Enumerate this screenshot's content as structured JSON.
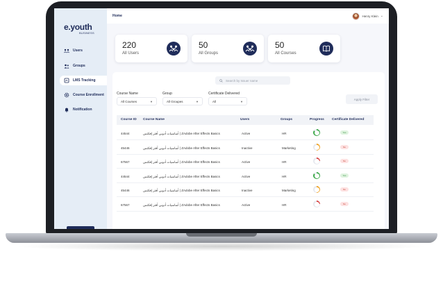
{
  "colors": {
    "brand": "#1f2c5a",
    "sidebar_bg": "#e5edf6",
    "green": "#3ca84a",
    "orange": "#f0a323",
    "red": "#d94343"
  },
  "logo": {
    "text": "e.youth",
    "sub": "BUSINESS"
  },
  "sidebar": {
    "items": [
      {
        "label": "Users",
        "icon": "users-icon"
      },
      {
        "label": "Groups",
        "icon": "groups-icon"
      },
      {
        "label": "LMS Tracking",
        "icon": "tracking-icon",
        "active": true
      },
      {
        "label": "Course Enrollment",
        "icon": "gear-icon"
      },
      {
        "label": "Notification",
        "icon": "bell-icon"
      }
    ]
  },
  "topbar": {
    "breadcrumb": "Home",
    "user_name": "Henry Klein"
  },
  "stats": [
    {
      "value": "220",
      "label": "All Users",
      "icon": "users-network-icon"
    },
    {
      "value": "50",
      "label": "All Groups",
      "icon": "groups-network-icon"
    },
    {
      "value": "50",
      "label": "All Courses",
      "icon": "book-icon"
    }
  ],
  "search": {
    "placeholder": "Search by Issuer name"
  },
  "filters": {
    "course_name_label": "Course Name",
    "course_name_value": "All Courses",
    "group_label": "Group",
    "group_value": "All Groupes",
    "certificate_label": "Certificate Delivered",
    "certificate_value": "All",
    "apply_label": "Apply Filter"
  },
  "table": {
    "headers": [
      "Course ID",
      "Course Name",
      "Users",
      "Groups",
      "Progress",
      "Certificate Delivered"
    ],
    "rows": [
      {
        "id": "44544",
        "name": "أساسيات أدوبي أفتر إفكتس | ZAdobe After Effects Basics",
        "users": "Active",
        "groups": "HR",
        "progress": 0.85,
        "progress_color": "green",
        "cert": "Yes"
      },
      {
        "id": "45446",
        "name": "أساسيات أدوبي أفتر إفكتس | ZAdobe After Effects Basics",
        "users": "Inactive",
        "groups": "Marketing",
        "progress": 0.5,
        "progress_color": "orange",
        "cert": "No"
      },
      {
        "id": "67567",
        "name": "أساسيات أدوبي أفتر إفكتس | ZAdobe After Effects Basics",
        "users": "Active",
        "groups": "HR",
        "progress": 0.25,
        "progress_color": "red",
        "cert": "No"
      },
      {
        "id": "44544",
        "name": "أساسيات أدوبي أفتر إفكتس | ZAdobe After Effects Basics",
        "users": "Active",
        "groups": "HR",
        "progress": 0.85,
        "progress_color": "green",
        "cert": "Yes"
      },
      {
        "id": "45446",
        "name": "أساسيات أدوبي أفتر إفكتس | ZAdobe After Effects Basics",
        "users": "Inactive",
        "groups": "Marketing",
        "progress": 0.5,
        "progress_color": "orange",
        "cert": "No"
      },
      {
        "id": "67567",
        "name": "أساسيات أدوبي أفتر إفكتس | ZAdobe After Effects Basics",
        "users": "Active",
        "groups": "HR",
        "progress": 0.25,
        "progress_color": "red",
        "cert": "No"
      }
    ]
  }
}
